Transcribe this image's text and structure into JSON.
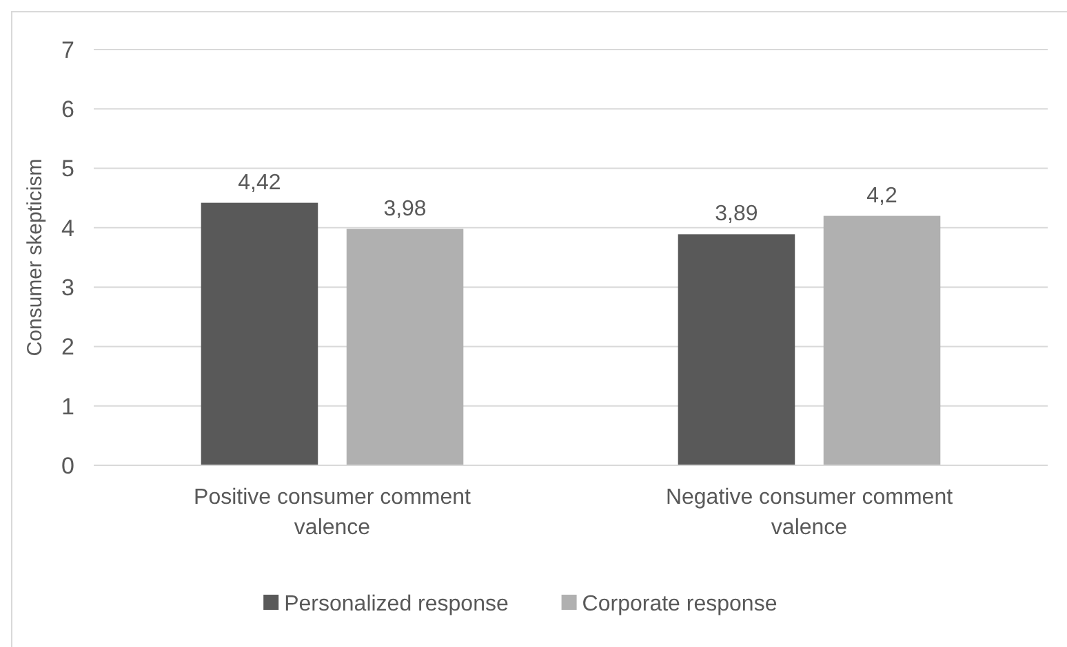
{
  "chart_data": {
    "type": "bar",
    "ylabel": "Consumer skepticism",
    "categories": [
      "Positive consumer comment valence",
      "Negative consumer comment valence"
    ],
    "series": [
      {
        "name": "Personalized response",
        "color": "#595959",
        "values": [
          4.42,
          3.89
        ],
        "value_labels": [
          "4,42",
          "3,89"
        ]
      },
      {
        "name": "Corporate response",
        "color": "#b0b0b0",
        "values": [
          3.98,
          4.2
        ],
        "value_labels": [
          "3,98",
          "4,2"
        ]
      }
    ],
    "ylim": [
      0,
      7
    ],
    "yticks": [
      0,
      1,
      2,
      3,
      4,
      5,
      6,
      7
    ],
    "grid": "y",
    "legend": "bottom"
  }
}
